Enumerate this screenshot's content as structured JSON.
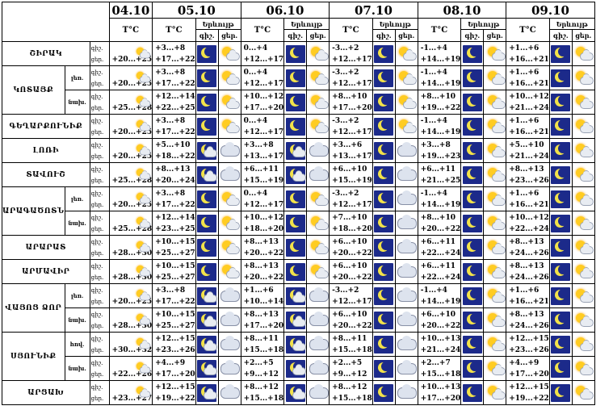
{
  "dates": [
    "04.10",
    "05.10",
    "06.10",
    "07.10",
    "08.10",
    "09.10"
  ],
  "temp_label": "T°C",
  "day_label": "Երկ",
  "day_label_full": "Երևույթ",
  "night_short": "գիշ.",
  "day_short": "ցեր.",
  "night_short2": "գիշ.",
  "day_short2": "ցեր.",
  "regions": [
    {
      "name": "ՇԻՐԱԿ",
      "sub": "",
      "t0": "+20...+25",
      "days": [
        [
          "+3...+8",
          "+17...+22",
          "moon",
          "sun"
        ],
        [
          "0...+4",
          "+12...+17",
          "moon",
          "sun"
        ],
        [
          "-3...+2",
          "+12...+17",
          "moon",
          "sun"
        ],
        [
          "-1...+4",
          "+14...+19",
          "moon",
          "sun"
        ],
        [
          "+1...+6",
          "+16...+21",
          "moon",
          "sun"
        ]
      ]
    },
    {
      "name": "ԿՈՏԱՅՔ",
      "sub": "լեռ.",
      "t0": "+20...+25",
      "days": [
        [
          "+3...+8",
          "+17...+22",
          "moon",
          "sun"
        ],
        [
          "0...+4",
          "+12...+17",
          "moon",
          "sun"
        ],
        [
          "-3...+2",
          "+12...+17",
          "moon",
          "sun"
        ],
        [
          "-1...+4",
          "+14...+19",
          "moon",
          "sun"
        ],
        [
          "+1...+6",
          "+16...+21",
          "moon",
          "sun"
        ]
      ]
    },
    {
      "name": "",
      "sub": "նախ.",
      "t0": "+25...+28",
      "days": [
        [
          "+12...+14",
          "+22...+25",
          "moon",
          "sun"
        ],
        [
          "+10...+12",
          "+17...+20",
          "moon",
          "sun"
        ],
        [
          "+8...+10",
          "+17...+20",
          "moon",
          "sun"
        ],
        [
          "+8...+10",
          "+19...+22",
          "moon",
          "sun"
        ],
        [
          "+10...+12",
          "+21...+24",
          "moon",
          "sun"
        ]
      ]
    },
    {
      "name": "ԳԵՂԱՐՔՈՒՆԻՔ",
      "sub": "",
      "t0": "+20...+25",
      "days": [
        [
          "+3...+8",
          "+17...+22",
          "moon",
          "sun"
        ],
        [
          "0...+4",
          "+12...+17",
          "moon",
          "sun"
        ],
        [
          "-3...+2",
          "+12...+17",
          "moon",
          "sun"
        ],
        [
          "-1...+4",
          "+14...+19",
          "moon",
          "sun"
        ],
        [
          "+1...+6",
          "+16...+21",
          "moon",
          "sun"
        ]
      ]
    },
    {
      "name": "ԼՈՌԻ",
      "sub": "",
      "t0": "+20...+25",
      "days": [
        [
          "+5...+10",
          "+18...+22",
          "cloudnight",
          "cloud"
        ],
        [
          "+3...+8",
          "+13...+17",
          "cloudnight",
          "cloud"
        ],
        [
          "+3...+6",
          "+13...+17",
          "moon",
          "cloud"
        ],
        [
          "+3...+8",
          "+19...+23",
          "moon",
          "sun"
        ],
        [
          "+5...+10",
          "+21...+24",
          "moon",
          "sun"
        ]
      ]
    },
    {
      "name": "ՏԱՎՈՒՇ",
      "sub": "",
      "t0": "+25...+28",
      "days": [
        [
          "+8...+13",
          "+20...+24",
          "cloudnight",
          "cloud"
        ],
        [
          "+6...+11",
          "+15...+19",
          "cloudnight",
          "cloud"
        ],
        [
          "+6...+10",
          "+15...+19",
          "moon",
          "cloud"
        ],
        [
          "+6...+11",
          "+21...+25",
          "moon",
          "sun"
        ],
        [
          "+8...+13",
          "+23...+26",
          "moon",
          "sun"
        ]
      ]
    },
    {
      "name": "ԱՐԱԳԱԾՈՏՆ",
      "sub": "լեռ.",
      "t0": "+20...+25",
      "days": [
        [
          "+3...+8",
          "+17...+22",
          "moon",
          "sun"
        ],
        [
          "0...+4",
          "+12...+17",
          "moon",
          "sun"
        ],
        [
          "-3...+2",
          "+12...+17",
          "moon",
          "cloud"
        ],
        [
          "-1...+4",
          "+14...+19",
          "moon",
          "sun"
        ],
        [
          "+1...+6",
          "+16...+21",
          "moon",
          "sun"
        ]
      ]
    },
    {
      "name": "",
      "sub": "նախ.",
      "t0": "+25...+28",
      "days": [
        [
          "+12...+14",
          "+23...+25",
          "moon",
          "sun"
        ],
        [
          "+10...+12",
          "+18...+20",
          "moon",
          "sun"
        ],
        [
          "+7...+10",
          "+18...+20",
          "moon",
          "cloud"
        ],
        [
          "+8...+10",
          "+20...+22",
          "moon",
          "sun"
        ],
        [
          "+10...+12",
          "+22...+24",
          "moon",
          "sun"
        ]
      ]
    },
    {
      "name": "ԱՐԱՐԱՏ",
      "sub": "",
      "t0": "+28...+30",
      "days": [
        [
          "+10...+15",
          "+25...+27",
          "moon",
          "sun"
        ],
        [
          "+8...+13",
          "+20...+22",
          "moon",
          "sun"
        ],
        [
          "+6...+10",
          "+20...+22",
          "moon",
          "cloud"
        ],
        [
          "+6...+11",
          "+22...+24",
          "moon",
          "sun"
        ],
        [
          "+8...+13",
          "+24...+26",
          "moon",
          "sun"
        ]
      ]
    },
    {
      "name": "ԱՐՄԱՎԻՐ",
      "sub": "",
      "t0": "+28...+30",
      "days": [
        [
          "+10...+15",
          "+25...+27",
          "moon",
          "sun"
        ],
        [
          "+8...+13",
          "+20...+22",
          "moon",
          "sun"
        ],
        [
          "+6...+10",
          "+20...+22",
          "moon",
          "cloud"
        ],
        [
          "+6...+11",
          "+22...+24",
          "moon",
          "sun"
        ],
        [
          "+8...+13",
          "+24...+26",
          "moon",
          "sun"
        ]
      ]
    },
    {
      "name": "ՎԱՅՈՑ ՁՈՐ",
      "sub": "լեռ.",
      "t0": "+20...+25",
      "days": [
        [
          "+3...+8",
          "+17...+22",
          "cloudnight",
          "cloud"
        ],
        [
          "+1...+6",
          "+10...+14",
          "cloudnight",
          "cloud"
        ],
        [
          "-3...+2",
          "+12...+17",
          "moon",
          "cloud"
        ],
        [
          "-1...+4",
          "+14...+19",
          "moon",
          "sun"
        ],
        [
          "+1...+6",
          "+16...+21",
          "moon",
          "sun"
        ]
      ]
    },
    {
      "name": "",
      "sub": "նախ.",
      "t0": "+28...+30",
      "days": [
        [
          "+10...+15",
          "+25...+27",
          "cloudnight",
          "cloud"
        ],
        [
          "+8...+13",
          "+17...+20",
          "cloudnight",
          "cloud"
        ],
        [
          "+6...+10",
          "+20...+22",
          "moon",
          "cloud"
        ],
        [
          "+6...+10",
          "+20...+22",
          "moon",
          "sun"
        ],
        [
          "+8...+13",
          "+24...+26",
          "moon",
          "sun"
        ]
      ]
    },
    {
      "name": "ՍՅՈՒՆԻՔ",
      "sub": "հով.",
      "t0": "+30...+32",
      "days": [
        [
          "+12...+15",
          "+23...+26",
          "cloudnight",
          "cloud"
        ],
        [
          "+8...+11",
          "+15...+18",
          "cloudnight",
          "cloud"
        ],
        [
          "+8...+11",
          "+15...+18",
          "moon",
          "cloud"
        ],
        [
          "+10...+13",
          "+21...+24",
          "moon",
          "sun"
        ],
        [
          "+12...+15",
          "+23...+26",
          "moon",
          "sun"
        ]
      ]
    },
    {
      "name": "",
      "sub": "նախ.",
      "t0": "+22...+26",
      "days": [
        [
          "+4...+9",
          "+17...+20",
          "cloudnight",
          "cloud"
        ],
        [
          "+2...+5",
          "+9...+12",
          "cloudnight",
          "cloud"
        ],
        [
          "+2...+5",
          "+9...+12",
          "moon",
          "cloud"
        ],
        [
          "+2...+7",
          "+15...+18",
          "moon",
          "sun"
        ],
        [
          "+4...+9",
          "+17...+20",
          "moon",
          "sun"
        ]
      ]
    },
    {
      "name": "ԱՐՑԱԽ",
      "sub": "",
      "t0": "+23...+27",
      "days": [
        [
          "+12...+15",
          "+19...+22",
          "cloudnight",
          "cloud"
        ],
        [
          "+8...+12",
          "+15...+18",
          "cloudnight",
          "cloud"
        ],
        [
          "+8...+12",
          "+15...+18",
          "moon",
          "cloud"
        ],
        [
          "+10...+13",
          "+17...+20",
          "moon",
          "sun"
        ],
        [
          "+12...+15",
          "+19...+22",
          "moon",
          "sun"
        ]
      ]
    }
  ]
}
